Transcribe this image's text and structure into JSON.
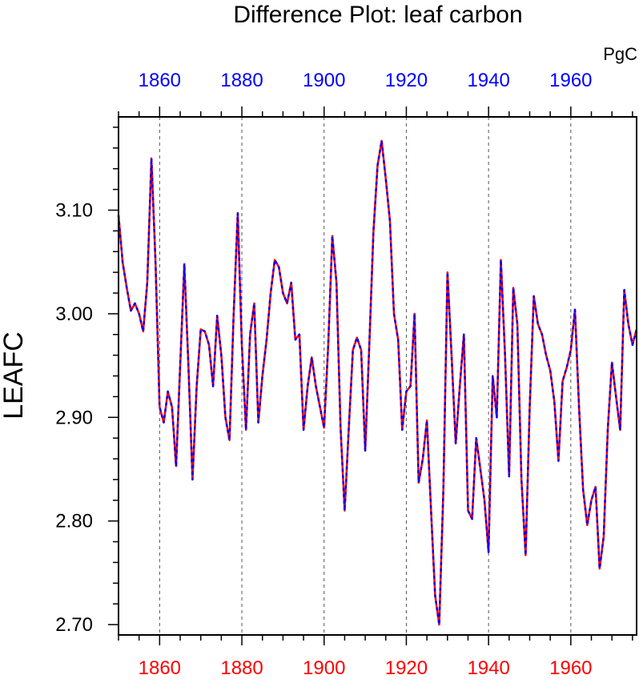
{
  "chart_data": {
    "type": "line",
    "title": "Difference Plot: leaf carbon",
    "ylabel": "LEAFC",
    "units": "PgC",
    "xlim": [
      1850,
      1976
    ],
    "ylim": [
      2.69,
      3.19
    ],
    "yticks": [
      2.7,
      2.8,
      2.9,
      3.0,
      3.1
    ],
    "ytick_labels": [
      "2.70",
      "2.80",
      "2.90",
      "3.00",
      "3.10"
    ],
    "top_xticks": [
      1860,
      1880,
      1900,
      1920,
      1940,
      1960
    ],
    "top_xtick_labels": [
      "1860",
      "1880",
      "1900",
      "1920",
      "1940",
      "1960"
    ],
    "bottom_xticks": [
      1860,
      1880,
      1900,
      1920,
      1940,
      1960
    ],
    "bottom_xtick_labels": [
      "1860",
      "1880",
      "1900",
      "1920",
      "1940",
      "1960"
    ],
    "colors": {
      "top_axis": "#0000ff",
      "bottom_axis": "#ff0000",
      "solid_line": "#ff0000",
      "dashed_line": "#0000ff"
    },
    "grid": "dashed vertical lines at major x ticks",
    "series": [
      {
        "style": "solid red line with dashed blue overlay",
        "x": [
          1850,
          1851,
          1852,
          1853,
          1854,
          1855,
          1856,
          1857,
          1858,
          1859,
          1860,
          1861,
          1862,
          1863,
          1864,
          1865,
          1866,
          1867,
          1868,
          1869,
          1870,
          1871,
          1872,
          1873,
          1874,
          1875,
          1876,
          1877,
          1878,
          1879,
          1880,
          1881,
          1882,
          1883,
          1884,
          1885,
          1886,
          1887,
          1888,
          1889,
          1890,
          1891,
          1892,
          1893,
          1894,
          1895,
          1896,
          1897,
          1898,
          1899,
          1900,
          1901,
          1902,
          1903,
          1904,
          1905,
          1906,
          1907,
          1908,
          1909,
          1910,
          1911,
          1912,
          1913,
          1914,
          1915,
          1916,
          1917,
          1918,
          1919,
          1920,
          1921,
          1922,
          1923,
          1924,
          1925,
          1926,
          1927,
          1928,
          1929,
          1930,
          1931,
          1932,
          1933,
          1934,
          1935,
          1936,
          1937,
          1938,
          1939,
          1940,
          1941,
          1942,
          1943,
          1944,
          1945,
          1946,
          1947,
          1948,
          1949,
          1950,
          1951,
          1952,
          1953,
          1954,
          1955,
          1956,
          1957,
          1958,
          1959,
          1960,
          1961,
          1962,
          1963,
          1964,
          1965,
          1966,
          1967,
          1968,
          1969,
          1970,
          1971,
          1972,
          1973,
          1974,
          1975,
          1976
        ],
        "values": [
          3.095,
          3.05,
          3.025,
          3.003,
          3.01,
          3.0,
          2.983,
          3.03,
          3.15,
          3.05,
          2.91,
          2.895,
          2.925,
          2.91,
          2.853,
          2.95,
          3.048,
          2.95,
          2.84,
          2.93,
          2.985,
          2.983,
          2.97,
          2.93,
          2.998,
          2.96,
          2.9,
          2.878,
          3.0,
          3.097,
          2.97,
          2.888,
          2.98,
          3.01,
          2.895,
          2.94,
          2.975,
          3.02,
          3.052,
          3.045,
          3.02,
          3.01,
          3.03,
          2.975,
          2.98,
          2.888,
          2.93,
          2.958,
          2.93,
          2.91,
          2.89,
          2.97,
          3.075,
          3.03,
          2.89,
          2.81,
          2.89,
          2.965,
          2.977,
          2.965,
          2.868,
          2.97,
          3.08,
          3.143,
          3.167,
          3.13,
          3.09,
          3.0,
          2.975,
          2.888,
          2.925,
          2.93,
          3.0,
          2.837,
          2.86,
          2.897,
          2.81,
          2.728,
          2.7,
          2.83,
          3.04,
          2.96,
          2.875,
          2.93,
          2.98,
          2.81,
          2.802,
          2.88,
          2.85,
          2.82,
          2.77,
          2.94,
          2.9,
          3.052,
          2.96,
          2.843,
          3.025,
          2.99,
          2.84,
          2.767,
          2.91,
          3.017,
          2.99,
          2.98,
          2.96,
          2.945,
          2.915,
          2.858,
          2.935,
          2.948,
          2.965,
          3.004,
          2.91,
          2.83,
          2.796,
          2.82,
          2.833,
          2.754,
          2.785,
          2.89,
          2.953,
          2.92,
          2.888,
          3.023,
          2.99,
          2.97,
          2.985
        ]
      }
    ]
  }
}
